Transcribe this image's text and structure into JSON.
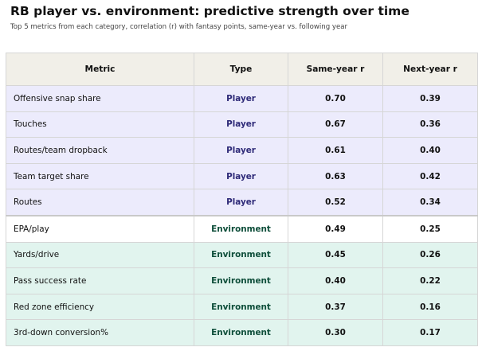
{
  "title": "RB player vs. environment: predictive strength over time",
  "subtitle": "Top 5 metrics from each category, correlation (r) with fantasy points, same-year vs. following year",
  "colors": {
    "header_bg": "#f1efe8",
    "player_row_bg": "#ecebfc",
    "environment_row_bg": "#e1f4ee",
    "player_text": "#2e2a78",
    "environment_text": "#0e4e3a"
  },
  "chart_data": {
    "type": "table",
    "columns": [
      "Metric",
      "Type",
      "Same-year r",
      "Next-year r"
    ],
    "rows": [
      {
        "metric": "Offensive snap share",
        "type": "Player",
        "same_year_r": "0.70",
        "next_year_r": "0.39"
      },
      {
        "metric": "Touches",
        "type": "Player",
        "same_year_r": "0.67",
        "next_year_r": "0.36"
      },
      {
        "metric": "Routes/team dropback",
        "type": "Player",
        "same_year_r": "0.61",
        "next_year_r": "0.40"
      },
      {
        "metric": "Team target share",
        "type": "Player",
        "same_year_r": "0.63",
        "next_year_r": "0.42"
      },
      {
        "metric": "Routes",
        "type": "Player",
        "same_year_r": "0.52",
        "next_year_r": "0.34"
      },
      {
        "metric": "EPA/play",
        "type": "Environment",
        "same_year_r": "0.49",
        "next_year_r": "0.25"
      },
      {
        "metric": "Yards/drive",
        "type": "Environment",
        "same_year_r": "0.45",
        "next_year_r": "0.26"
      },
      {
        "metric": "Pass success rate",
        "type": "Environment",
        "same_year_r": "0.40",
        "next_year_r": "0.22"
      },
      {
        "metric": "Red zone efficiency",
        "type": "Environment",
        "same_year_r": "0.37",
        "next_year_r": "0.16"
      },
      {
        "metric": "3rd-down conversion%",
        "type": "Environment",
        "same_year_r": "0.30",
        "next_year_r": "0.17"
      }
    ]
  }
}
